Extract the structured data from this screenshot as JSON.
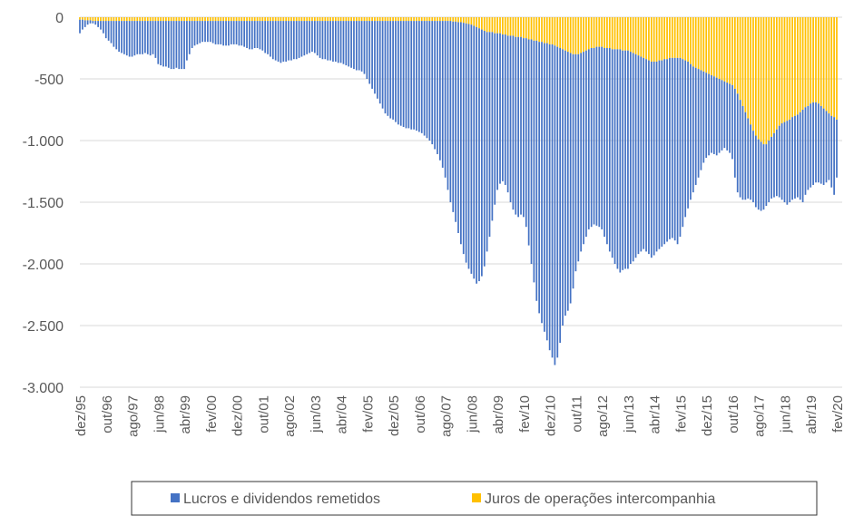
{
  "chart_data": {
    "type": "stacked_bar",
    "categories": [
      "dez/95",
      null,
      null,
      null,
      null,
      null,
      null,
      null,
      null,
      null,
      "out/96",
      null,
      null,
      null,
      null,
      null,
      null,
      null,
      null,
      null,
      "ago/97",
      null,
      null,
      null,
      null,
      null,
      null,
      null,
      null,
      null,
      "jun/98",
      null,
      null,
      null,
      null,
      null,
      null,
      null,
      null,
      null,
      "abr/99",
      null,
      null,
      null,
      null,
      null,
      null,
      null,
      null,
      null,
      "fev/00",
      null,
      null,
      null,
      null,
      null,
      null,
      null,
      null,
      null,
      "dez/00",
      null,
      null,
      null,
      null,
      null,
      null,
      null,
      null,
      null,
      "out/01",
      null,
      null,
      null,
      null,
      null,
      null,
      null,
      null,
      null,
      "ago/02",
      null,
      null,
      null,
      null,
      null,
      null,
      null,
      null,
      null,
      "jun/03",
      null,
      null,
      null,
      null,
      null,
      null,
      null,
      null,
      null,
      "abr/04",
      null,
      null,
      null,
      null,
      null,
      null,
      null,
      null,
      null,
      "fev/05",
      null,
      null,
      null,
      null,
      null,
      null,
      null,
      null,
      null,
      "dez/05",
      null,
      null,
      null,
      null,
      null,
      null,
      null,
      null,
      null,
      "out/06",
      null,
      null,
      null,
      null,
      null,
      null,
      null,
      null,
      null,
      "ago/07",
      null,
      null,
      null,
      null,
      null,
      null,
      null,
      null,
      null,
      "jun/08",
      null,
      null,
      null,
      null,
      null,
      null,
      null,
      null,
      null,
      "abr/09",
      null,
      null,
      null,
      null,
      null,
      null,
      null,
      null,
      null,
      "fev/10",
      null,
      null,
      null,
      null,
      null,
      null,
      null,
      null,
      null,
      "dez/10",
      null,
      null,
      null,
      null,
      null,
      null,
      null,
      null,
      null,
      "out/11",
      null,
      null,
      null,
      null,
      null,
      null,
      null,
      null,
      null,
      "ago/12",
      null,
      null,
      null,
      null,
      null,
      null,
      null,
      null,
      null,
      "jun/13",
      null,
      null,
      null,
      null,
      null,
      null,
      null,
      null,
      null,
      "abr/14",
      null,
      null,
      null,
      null,
      null,
      null,
      null,
      null,
      null,
      "fev/15",
      null,
      null,
      null,
      null,
      null,
      null,
      null,
      null,
      null,
      "dez/15",
      null,
      null,
      null,
      null,
      null,
      null,
      null,
      null,
      null,
      "out/16",
      null,
      null,
      null,
      null,
      null,
      null,
      null,
      null,
      null,
      "ago/17",
      null,
      null,
      null,
      null,
      null,
      null,
      null,
      null,
      null,
      "jun/18",
      null,
      null,
      null,
      null,
      null,
      null,
      null,
      null,
      null,
      "abr/19",
      null,
      null,
      null,
      null,
      null,
      null,
      null,
      null,
      null,
      "fev/20"
    ],
    "series": [
      {
        "name": "Lucros e dividendos remetidos",
        "color": "#4472c4",
        "values": [
          -110,
          -80,
          -55,
          -35,
          -25,
          -20,
          -30,
          -50,
          -70,
          -100,
          -140,
          -160,
          -180,
          -210,
          -230,
          -250,
          -260,
          -270,
          -280,
          -290,
          -290,
          -280,
          -270,
          -270,
          -270,
          -260,
          -270,
          -280,
          -270,
          -300,
          -350,
          -360,
          -370,
          -370,
          -380,
          -390,
          -390,
          -380,
          -390,
          -390,
          -390,
          -320,
          -270,
          -220,
          -200,
          -190,
          -180,
          -170,
          -170,
          -170,
          -170,
          -180,
          -190,
          -190,
          -190,
          -200,
          -200,
          -200,
          -190,
          -190,
          -190,
          -200,
          -200,
          -210,
          -220,
          -230,
          -230,
          -220,
          -220,
          -230,
          -240,
          -260,
          -270,
          -290,
          -310,
          -320,
          -330,
          -340,
          -330,
          -330,
          -320,
          -320,
          -310,
          -310,
          -300,
          -290,
          -280,
          -270,
          -260,
          -250,
          -260,
          -280,
          -300,
          -310,
          -310,
          -320,
          -320,
          -330,
          -330,
          -340,
          -340,
          -350,
          -360,
          -370,
          -380,
          -390,
          -400,
          -400,
          -410,
          -430,
          -470,
          -510,
          -550,
          -590,
          -630,
          -670,
          -710,
          -750,
          -770,
          -790,
          -800,
          -820,
          -840,
          -850,
          -860,
          -870,
          -870,
          -880,
          -880,
          -890,
          -900,
          -910,
          -930,
          -950,
          -970,
          -1000,
          -1040,
          -1080,
          -1130,
          -1190,
          -1270,
          -1370,
          -1470,
          -1545,
          -1625,
          -1710,
          -1800,
          -1875,
          -1940,
          -1985,
          -2020,
          -2050,
          -2080,
          -2050,
          -2000,
          -1910,
          -1780,
          -1660,
          -1530,
          -1390,
          -1270,
          -1220,
          -1190,
          -1220,
          -1270,
          -1350,
          -1410,
          -1440,
          -1460,
          -1440,
          -1450,
          -1530,
          -1670,
          -1820,
          -1960,
          -2110,
          -2200,
          -2280,
          -2340,
          -2410,
          -2480,
          -2540,
          -2590,
          -2520,
          -2390,
          -2240,
          -2150,
          -2100,
          -2030,
          -1900,
          -1760,
          -1680,
          -1610,
          -1560,
          -1510,
          -1460,
          -1450,
          -1430,
          -1450,
          -1460,
          -1480,
          -1530,
          -1590,
          -1650,
          -1690,
          -1740,
          -1780,
          -1810,
          -1780,
          -1770,
          -1770,
          -1720,
          -1690,
          -1650,
          -1610,
          -1580,
          -1550,
          -1560,
          -1570,
          -1590,
          -1570,
          -1540,
          -1530,
          -1510,
          -1500,
          -1480,
          -1470,
          -1460,
          -1480,
          -1510,
          -1450,
          -1360,
          -1270,
          -1190,
          -1100,
          -1020,
          -950,
          -880,
          -810,
          -740,
          -690,
          -660,
          -630,
          -630,
          -630,
          -600,
          -570,
          -540,
          -550,
          -560,
          -600,
          -720,
          -800,
          -790,
          -760,
          -710,
          -650,
          -610,
          -580,
          -580,
          -570,
          -560,
          -530,
          -500,
          -500,
          -500,
          -520,
          -540,
          -580,
          -620,
          -650,
          -680,
          -670,
          -670,
          -670,
          -670,
          -710,
          -750,
          -710,
          -680,
          -680,
          -670,
          -650,
          -640,
          -630,
          -620,
          -580,
          -540,
          -580,
          -630,
          -470
        ]
      },
      {
        "name": "Juros de operações intercompanhia",
        "color": "#ffc000",
        "values": [
          -20,
          -20,
          -25,
          -25,
          -25,
          -30,
          -30,
          -30,
          -30,
          -30,
          -30,
          -30,
          -30,
          -30,
          -30,
          -30,
          -30,
          -30,
          -30,
          -30,
          -30,
          -30,
          -30,
          -30,
          -30,
          -30,
          -30,
          -30,
          -30,
          -30,
          -30,
          -30,
          -30,
          -30,
          -30,
          -30,
          -30,
          -30,
          -30,
          -30,
          -30,
          -30,
          -30,
          -30,
          -30,
          -30,
          -30,
          -30,
          -30,
          -30,
          -30,
          -30,
          -30,
          -30,
          -30,
          -30,
          -30,
          -30,
          -30,
          -30,
          -30,
          -30,
          -30,
          -30,
          -30,
          -30,
          -30,
          -30,
          -30,
          -30,
          -30,
          -30,
          -30,
          -30,
          -30,
          -30,
          -30,
          -30,
          -30,
          -30,
          -30,
          -30,
          -30,
          -30,
          -30,
          -30,
          -30,
          -30,
          -30,
          -30,
          -30,
          -30,
          -30,
          -30,
          -30,
          -30,
          -30,
          -30,
          -30,
          -30,
          -30,
          -30,
          -30,
          -30,
          -30,
          -30,
          -30,
          -30,
          -30,
          -30,
          -30,
          -30,
          -30,
          -30,
          -30,
          -30,
          -30,
          -30,
          -30,
          -30,
          -30,
          -30,
          -30,
          -30,
          -30,
          -30,
          -30,
          -30,
          -30,
          -30,
          -30,
          -30,
          -30,
          -30,
          -30,
          -30,
          -30,
          -30,
          -30,
          -30,
          -30,
          -30,
          -30,
          -35,
          -35,
          -40,
          -40,
          -45,
          -50,
          -55,
          -60,
          -70,
          -80,
          -90,
          -100,
          -110,
          -120,
          -120,
          -120,
          -130,
          -130,
          -130,
          -140,
          -140,
          -150,
          -150,
          -150,
          -160,
          -160,
          -160,
          -170,
          -170,
          -180,
          -180,
          -190,
          -190,
          -200,
          -200,
          -210,
          -210,
          -220,
          -220,
          -230,
          -240,
          -250,
          -260,
          -270,
          -280,
          -290,
          -300,
          -300,
          -300,
          -290,
          -280,
          -270,
          -260,
          -250,
          -250,
          -240,
          -240,
          -240,
          -250,
          -250,
          -250,
          -260,
          -260,
          -260,
          -260,
          -270,
          -270,
          -270,
          -280,
          -290,
          -300,
          -310,
          -320,
          -330,
          -340,
          -350,
          -360,
          -360,
          -360,
          -350,
          -350,
          -340,
          -340,
          -330,
          -330,
          -330,
          -330,
          -330,
          -340,
          -350,
          -360,
          -380,
          -400,
          -410,
          -420,
          -430,
          -440,
          -450,
          -460,
          -470,
          -480,
          -490,
          -500,
          -510,
          -520,
          -530,
          -540,
          -550,
          -580,
          -620,
          -670,
          -720,
          -770,
          -820,
          -870,
          -920,
          -960,
          -990,
          -1010,
          -1030,
          -1030,
          -1000,
          -970,
          -940,
          -910,
          -880,
          -860,
          -850,
          -840,
          -830,
          -810,
          -800,
          -790,
          -770,
          -750,
          -730,
          -720,
          -700,
          -690,
          -690,
          -700,
          -720,
          -740,
          -760,
          -780,
          -800,
          -810,
          -830
        ]
      }
    ],
    "ylim": [
      -3000,
      0
    ],
    "yticks": [
      0,
      -500,
      {
        "value": -1000,
        "label": "-1.000"
      },
      {
        "value": -1500,
        "label": "-1.500"
      },
      {
        "value": -2000,
        "label": "-2.000"
      },
      {
        "value": -2500,
        "label": "-2.500"
      },
      {
        "value": -3000,
        "label": "-3.000"
      }
    ],
    "grid": true,
    "legend": "bottom"
  }
}
